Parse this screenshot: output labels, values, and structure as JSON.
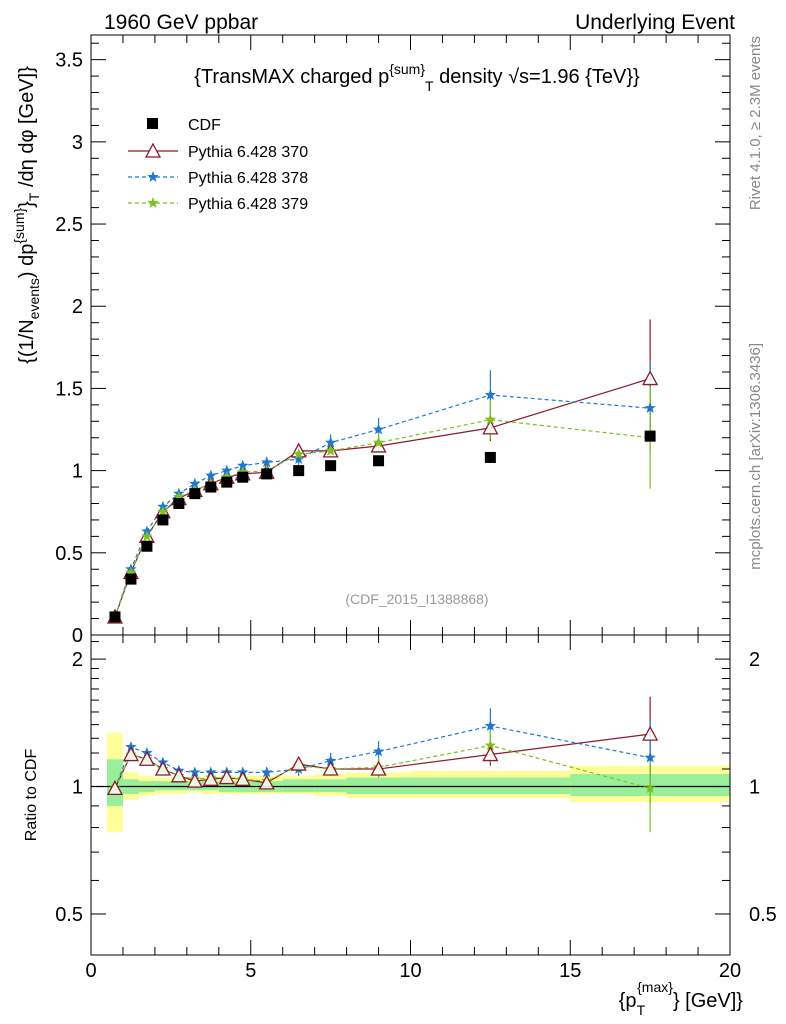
{
  "header": {
    "left": "1960 GeV ppbar",
    "right": "Underlying Event"
  },
  "side_labels": {
    "rivet": "Rivet 4.1.0, ≥ 2.3M events",
    "mcplots": "mcplots.cern.ch [arXiv:1306.3436]"
  },
  "chart_data": [
    {
      "panel": "main",
      "type": "scatter",
      "title": "{TransMAX charged p^{sum}_T density √s=1.96 {TeV}}",
      "title_parts": {
        "a": "{TransMAX charged p",
        "sup": "{sum}",
        "sub": "T",
        "b": " density ",
        "sqrt": "√",
        "c": "s=1.96 {TeV}}"
      },
      "ylabel": "{(1/N_events) dp^{sum}_T /dη dφ [GeV]}",
      "ylabel_parts": {
        "a": "{(1/N",
        "sub1": "events",
        "b": ") dp",
        "sup": "{sum}",
        "c": "}",
        "sub2": "T",
        "d": " /dη  dφ [GeV]}"
      },
      "watermark": "(CDF_2015_I1388868)",
      "xlim": [
        0,
        20
      ],
      "ylim": [
        0,
        3.65
      ],
      "x_ticks": [
        0,
        5,
        10,
        15,
        20
      ],
      "y_ticks": [
        0,
        0.5,
        1,
        1.5,
        2,
        2.5,
        3,
        3.5
      ],
      "y_tick_labels": [
        "0",
        "0.5",
        "1",
        "1.5",
        "2",
        "2.5",
        "3",
        "3.5"
      ],
      "legend": [
        "CDF",
        "Pythia 6.428 370",
        "Pythia 6.428 378",
        "Pythia 6.428 379"
      ],
      "x": [
        0.75,
        1.25,
        1.75,
        2.25,
        2.75,
        3.25,
        3.75,
        4.25,
        4.75,
        5.5,
        6.5,
        7.5,
        9.0,
        12.5,
        17.5
      ],
      "series": [
        {
          "name": "CDF",
          "color": "#000000",
          "marker": "square",
          "values": [
            0.11,
            0.34,
            0.54,
            0.7,
            0.8,
            0.86,
            0.9,
            0.93,
            0.96,
            0.98,
            1.0,
            1.03,
            1.06,
            1.08,
            1.21
          ]
        },
        {
          "name": "Pythia 6.428 370",
          "color": "#8b1a2b",
          "marker": "triangle",
          "values": [
            0.11,
            0.38,
            0.6,
            0.75,
            0.83,
            0.88,
            0.92,
            0.96,
            0.98,
            0.99,
            1.12,
            1.12,
            1.15,
            1.26,
            1.56
          ],
          "errors": [
            0.01,
            0.01,
            0.01,
            0.01,
            0.01,
            0.01,
            0.01,
            0.02,
            0.02,
            0.02,
            0.03,
            0.03,
            0.04,
            0.08,
            0.36
          ]
        },
        {
          "name": "Pythia 6.428 378",
          "color": "#1f77d0",
          "marker": "star",
          "values": [
            0.11,
            0.4,
            0.63,
            0.78,
            0.86,
            0.92,
            0.97,
            1.0,
            1.03,
            1.05,
            1.07,
            1.17,
            1.25,
            1.46,
            1.38
          ],
          "errors": [
            0.01,
            0.01,
            0.01,
            0.01,
            0.01,
            0.01,
            0.02,
            0.02,
            0.02,
            0.03,
            0.04,
            0.05,
            0.07,
            0.15,
            0.28
          ]
        },
        {
          "name": "Pythia 6.428 379",
          "color": "#7fbf1f",
          "marker": "star",
          "values": [
            0.11,
            0.38,
            0.6,
            0.75,
            0.84,
            0.88,
            0.92,
            0.96,
            0.99,
            1.0,
            1.1,
            1.12,
            1.17,
            1.31,
            1.2
          ],
          "errors": [
            0.01,
            0.01,
            0.01,
            0.01,
            0.01,
            0.01,
            0.02,
            0.02,
            0.02,
            0.03,
            0.04,
            0.04,
            0.06,
            0.12,
            0.31
          ]
        }
      ]
    },
    {
      "panel": "ratio",
      "type": "scatter",
      "ylabel": "Ratio to CDF",
      "xlabel": "{p_T^{max}} [GeV]}",
      "xlabel_parts": {
        "a": "{p",
        "sub": "T",
        "sup": "{max}",
        "b": "} [GeV]}"
      },
      "xlim": [
        0,
        20
      ],
      "ylim": [
        0.4,
        2.28
      ],
      "x_ticks": [
        0,
        5,
        10,
        15,
        20
      ],
      "x_tick_labels": [
        "0",
        "5",
        "10",
        "15",
        "20"
      ],
      "y_ticks": [
        0.5,
        1,
        2
      ],
      "y_tick_labels": [
        "0.5",
        "1",
        "2"
      ],
      "band_edges": [
        0.5,
        1.0,
        1.5,
        2.0,
        2.5,
        3.0,
        3.5,
        4.0,
        4.5,
        5.0,
        6.0,
        7.0,
        8.0,
        10.0,
        15.0,
        20.0
      ],
      "band_yellow": [
        [
          0.78,
          1.34
        ],
        [
          0.93,
          1.08
        ],
        [
          0.95,
          1.06
        ],
        [
          0.96,
          1.05
        ],
        [
          0.96,
          1.05
        ],
        [
          0.97,
          1.05
        ],
        [
          0.96,
          1.05
        ],
        [
          0.96,
          1.05
        ],
        [
          0.96,
          1.06
        ],
        [
          0.96,
          1.06
        ],
        [
          0.96,
          1.06
        ],
        [
          0.95,
          1.07
        ],
        [
          0.94,
          1.08
        ],
        [
          0.94,
          1.09
        ],
        [
          0.92,
          1.12
        ]
      ],
      "band_green": [
        [
          0.9,
          1.16
        ],
        [
          0.96,
          1.04
        ],
        [
          0.97,
          1.03
        ],
        [
          0.98,
          1.03
        ],
        [
          0.98,
          1.03
        ],
        [
          0.98,
          1.03
        ],
        [
          0.98,
          1.03
        ],
        [
          0.97,
          1.03
        ],
        [
          0.97,
          1.03
        ],
        [
          0.97,
          1.03
        ],
        [
          0.97,
          1.04
        ],
        [
          0.97,
          1.04
        ],
        [
          0.96,
          1.05
        ],
        [
          0.96,
          1.05
        ],
        [
          0.95,
          1.07
        ]
      ],
      "series": [
        {
          "name": "Pythia 6.428 370",
          "color": "#8b1a2b",
          "marker": "triangle",
          "values": [
            0.99,
            1.19,
            1.16,
            1.1,
            1.06,
            1.03,
            1.04,
            1.05,
            1.04,
            1.02,
            1.13,
            1.1,
            1.1,
            1.19,
            1.33
          ],
          "errors": [
            0.01,
            0.02,
            0.02,
            0.02,
            0.02,
            0.02,
            0.02,
            0.02,
            0.02,
            0.02,
            0.03,
            0.03,
            0.05,
            0.07,
            0.3
          ]
        },
        {
          "name": "Pythia 6.428 378",
          "color": "#1f77d0",
          "marker": "star",
          "values": [
            0.99,
            1.24,
            1.2,
            1.14,
            1.09,
            1.08,
            1.08,
            1.08,
            1.08,
            1.08,
            1.1,
            1.15,
            1.21,
            1.39,
            1.17
          ],
          "errors": [
            0.01,
            0.02,
            0.02,
            0.02,
            0.02,
            0.02,
            0.02,
            0.02,
            0.02,
            0.03,
            0.04,
            0.05,
            0.07,
            0.14,
            0.26
          ]
        },
        {
          "name": "Pythia 6.428 379",
          "color": "#7fbf1f",
          "marker": "star",
          "values": [
            0.99,
            1.19,
            1.16,
            1.1,
            1.06,
            1.04,
            1.05,
            1.05,
            1.04,
            1.03,
            1.12,
            1.1,
            1.11,
            1.25,
            0.99
          ],
          "errors": [
            0.01,
            0.02,
            0.02,
            0.02,
            0.02,
            0.02,
            0.02,
            0.02,
            0.02,
            0.03,
            0.04,
            0.04,
            0.06,
            0.11,
            0.21
          ]
        }
      ]
    }
  ]
}
